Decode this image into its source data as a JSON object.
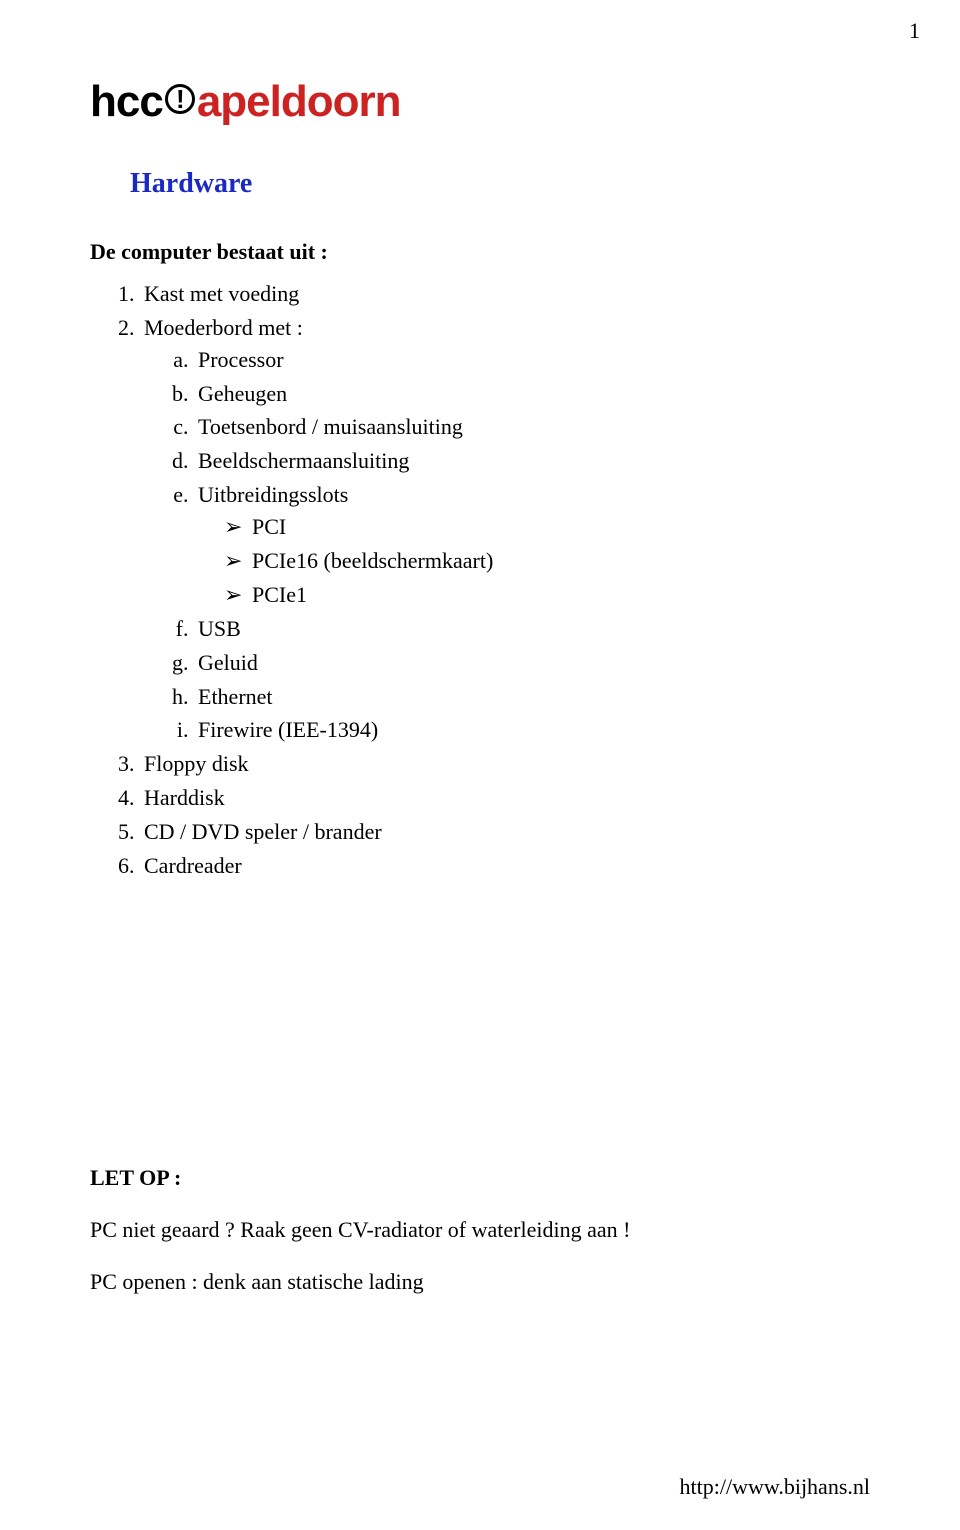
{
  "page_number": "1",
  "logo": {
    "part1": "hcc",
    "exclaim": "!",
    "part2": "apeldoorn",
    "color_part1": "#000000",
    "color_exclaim_border": "#000000",
    "color_part2": "#cc2222"
  },
  "section_title": "Hardware",
  "section_title_color": "#1a29c2",
  "intro": "De computer bestaat uit :",
  "top_list": [
    "Kast met voeding",
    "Moederbord met :",
    "Floppy disk",
    "Harddisk",
    "CD / DVD  speler / brander",
    "Cardreader"
  ],
  "alpha_list": [
    "Processor",
    "Geheugen",
    "Toetsenbord / muisaansluiting",
    "Beeldschermaansluiting",
    "Uitbreidingsslots",
    "USB",
    "Geluid",
    "Ethernet",
    "Firewire (IEE-1394)"
  ],
  "arrow_list": [
    "PCI",
    "PCIe16 (beeldschermkaart)",
    "PCIe1"
  ],
  "letop": {
    "title": "LET OP :",
    "line1": "PC niet geaard ?  Raak geen CV-radiator of waterleiding aan !",
    "line2": "PC openen : denk aan statische lading"
  },
  "footer_url": "http://www.bijhans.nl"
}
